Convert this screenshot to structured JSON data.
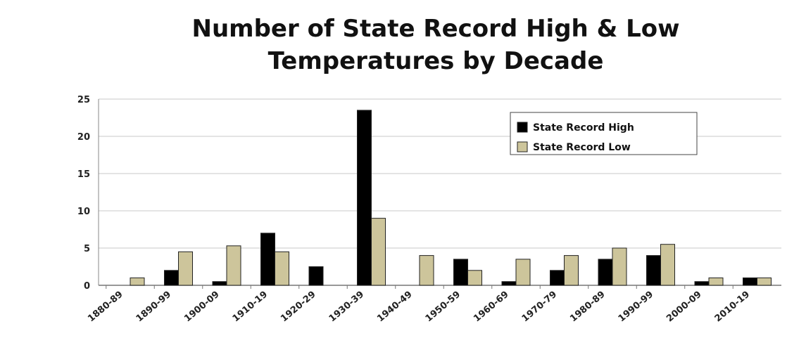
{
  "chart_data": {
    "type": "bar",
    "title_line1": "Number of State Record High & Low",
    "title_line2": "Temperatures by Decade",
    "categories": [
      "1880-89",
      "1890-99",
      "1900-09",
      "1910-19",
      "1920-29",
      "1930-39",
      "1940-49",
      "1950-59",
      "1960-69",
      "1970-79",
      "1980-89",
      "1990-99",
      "2000-09",
      "2010-19"
    ],
    "series": [
      {
        "name": "State Record High",
        "color": "#000000",
        "values": [
          0,
          2,
          0.5,
          7,
          2.5,
          23.5,
          0,
          3.5,
          0.5,
          2,
          3.5,
          4,
          0.5,
          1
        ]
      },
      {
        "name": "State Record Low",
        "color": "#cdc59b",
        "values": [
          1,
          4.5,
          5.3,
          4.5,
          0,
          9,
          4,
          2,
          3.5,
          4,
          5,
          5.5,
          1,
          1
        ]
      }
    ],
    "ylim": [
      0,
      25
    ],
    "yticks": [
      0,
      5,
      10,
      15,
      20,
      25
    ],
    "grid": true,
    "legend": "top-right"
  }
}
